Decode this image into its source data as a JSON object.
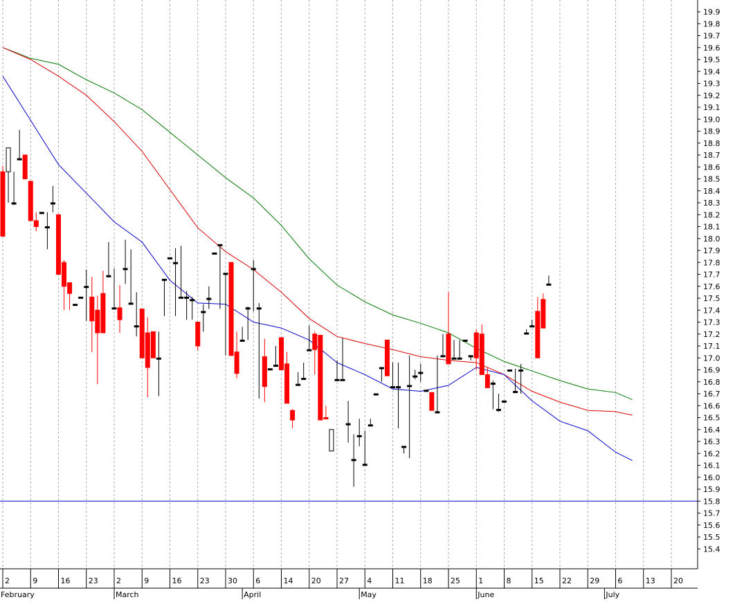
{
  "chart_data": {
    "type": "candlestick",
    "colors": {
      "up": "#ffffff",
      "down": "#ff0000",
      "flat": "#000000",
      "ma_fast": "#0000cc",
      "ma_mid": "#dd0000",
      "ma_slow": "#007700",
      "support": "#0000cc",
      "grid": "#aaaaaa"
    },
    "ylim": [
      15.4,
      20.0
    ],
    "y_ticks": [
      "19.9",
      "19.8",
      "19.7",
      "19.6",
      "19.5",
      "19.4",
      "19.3",
      "19.2",
      "19.1",
      "19.0",
      "18.9",
      "18.8",
      "18.7",
      "18.6",
      "18.5",
      "18.4",
      "18.3",
      "18.2",
      "18.1",
      "18.0",
      "17.9",
      "17.8",
      "17.7",
      "17.6",
      "17.5",
      "17.4",
      "17.3",
      "17.2",
      "17.1",
      "17.0",
      "16.9",
      "16.8",
      "16.7",
      "16.6",
      "16.5",
      "16.4",
      "16.3",
      "16.2",
      "16.1",
      "16.0",
      "15.9",
      "15.8",
      "15.7",
      "15.6",
      "15.5",
      "15.4"
    ],
    "x_week_ticks": [
      {
        "label": "2",
        "day": 0
      },
      {
        "label": "9",
        "day": 5
      },
      {
        "label": "16",
        "day": 10
      },
      {
        "label": "23",
        "day": 15
      },
      {
        "label": "2",
        "day": 20
      },
      {
        "label": "9",
        "day": 25
      },
      {
        "label": "16",
        "day": 30
      },
      {
        "label": "23",
        "day": 35
      },
      {
        "label": "30",
        "day": 40
      },
      {
        "label": "6",
        "day": 45
      },
      {
        "label": "14",
        "day": 50
      },
      {
        "label": "20",
        "day": 55
      },
      {
        "label": "27",
        "day": 60
      },
      {
        "label": "4",
        "day": 65
      },
      {
        "label": "11",
        "day": 70
      },
      {
        "label": "18",
        "day": 75
      },
      {
        "label": "25",
        "day": 80
      },
      {
        "label": "1",
        "day": 85
      },
      {
        "label": "8",
        "day": 90
      },
      {
        "label": "15",
        "day": 95
      },
      {
        "label": "22",
        "day": 100
      },
      {
        "label": "29",
        "day": 105
      },
      {
        "label": "6",
        "day": 110
      },
      {
        "label": "13",
        "day": 115
      },
      {
        "label": "20",
        "day": 120
      }
    ],
    "x_months": [
      {
        "label": "February",
        "day": 0
      },
      {
        "label": "March",
        "day": 20
      },
      {
        "label": "April",
        "day": 43
      },
      {
        "label": "May",
        "day": 64
      },
      {
        "label": "June",
        "day": 85
      },
      {
        "label": "July",
        "day": 108
      }
    ],
    "support_level": 15.8,
    "candles": [
      [
        18.56,
        18.02,
        18.61,
        18.02
      ],
      [
        18.56,
        18.76,
        18.3,
        18.73
      ],
      [
        18.3,
        18.3,
        18.28,
        18.56
      ],
      [
        18.67,
        18.67,
        18.91,
        18.67
      ],
      [
        18.7,
        18.5,
        18.7,
        18.5
      ],
      [
        18.48,
        18.15,
        18.48,
        18.15
      ],
      [
        18.15,
        18.1,
        18.22,
        18.06
      ],
      [
        18.22,
        18.22,
        18.22,
        18.22
      ],
      [
        18.1,
        18.1,
        18.22,
        17.91
      ],
      [
        18.3,
        18.3,
        18.44,
        18.22
      ],
      [
        18.2,
        17.7,
        18.2,
        17.7
      ],
      [
        17.8,
        17.6,
        17.82,
        17.4
      ],
      [
        17.63,
        17.54,
        17.63,
        17.4
      ],
      [
        17.45,
        17.45,
        17.45,
        17.45
      ],
      [
        17.51,
        17.51,
        17.51,
        17.51
      ],
      [
        17.6,
        17.6,
        17.74,
        17.31
      ],
      [
        17.51,
        17.31,
        17.68,
        17.05
      ],
      [
        17.4,
        17.21,
        17.52,
        16.78
      ],
      [
        17.54,
        17.21,
        17.73,
        17.21
      ],
      [
        17.69,
        17.69,
        17.97,
        17.69
      ],
      [
        17.42,
        17.42,
        17.75,
        17.42
      ],
      [
        17.42,
        17.32,
        17.61,
        17.21
      ],
      [
        17.75,
        17.75,
        17.99,
        17.62
      ],
      [
        17.46,
        17.46,
        17.91,
        17.46
      ],
      [
        17.27,
        17.27,
        17.55,
        17.18
      ],
      [
        17.41,
        17.0,
        17.41,
        17.0
      ],
      [
        17.21,
        16.92,
        17.34,
        16.67
      ],
      [
        17.22,
        17.0,
        17.22,
        17.0
      ],
      [
        17.0,
        17.0,
        17.22,
        16.68
      ],
      [
        17.66,
        17.66,
        17.66,
        17.35
      ],
      [
        17.84,
        17.84,
        17.84,
        17.84
      ],
      [
        17.8,
        17.8,
        17.92,
        17.35
      ],
      [
        17.51,
        17.51,
        17.94,
        17.51
      ],
      [
        17.51,
        17.51,
        17.56,
        17.32
      ],
      [
        17.49,
        17.49,
        17.51,
        17.32
      ],
      [
        17.3,
        17.1,
        17.3,
        17.06
      ],
      [
        17.39,
        17.39,
        17.45,
        17.22
      ],
      [
        17.5,
        17.5,
        17.6,
        17.41
      ],
      [
        17.88,
        17.88,
        17.88,
        17.88
      ],
      [
        17.95,
        17.95,
        17.95,
        17.41
      ],
      [
        17.71,
        17.71,
        17.71,
        17.02
      ],
      [
        17.8,
        17.02,
        17.8,
        17.02
      ],
      [
        17.05,
        16.87,
        17.22,
        16.83
      ],
      [
        17.15,
        17.15,
        17.26,
        17.15
      ],
      [
        17.42,
        17.42,
        17.43,
        17.15
      ],
      [
        17.75,
        17.75,
        17.82,
        17.39
      ],
      [
        17.42,
        17.42,
        17.46,
        16.66
      ],
      [
        17.01,
        16.76,
        17.16,
        16.63
      ],
      [
        16.91,
        16.91,
        16.91,
        16.91
      ],
      [
        16.94,
        16.94,
        17.1,
        16.94
      ],
      [
        17.17,
        16.9,
        17.17,
        16.9
      ],
      [
        16.95,
        16.62,
        17.05,
        16.62
      ],
      [
        16.56,
        16.48,
        16.57,
        16.41
      ],
      [
        16.78,
        16.78,
        16.88,
        16.78
      ],
      [
        16.83,
        16.83,
        16.96,
        16.83
      ],
      [
        17.07,
        17.07,
        17.27,
        17.07
      ],
      [
        17.2,
        17.07,
        17.22,
        16.86
      ],
      [
        17.19,
        16.48,
        17.19,
        16.48
      ],
      [
        16.5,
        16.49,
        16.6,
        16.49
      ],
      [
        16.22,
        16.4,
        16.22,
        16.4
      ],
      [
        16.82,
        16.82,
        16.98,
        16.82
      ],
      [
        16.82,
        16.82,
        17.17,
        16.82
      ],
      [
        16.45,
        16.45,
        16.64,
        16.29
      ],
      [
        16.15,
        16.15,
        16.36,
        15.92
      ],
      [
        16.35,
        16.35,
        16.49,
        16.26
      ],
      [
        16.11,
        16.11,
        16.39,
        16.11
      ],
      [
        16.44,
        16.44,
        16.49,
        16.44
      ],
      [
        16.7,
        16.7,
        16.7,
        16.7
      ],
      [
        16.92,
        16.92,
        16.92,
        16.8
      ],
      [
        17.15,
        16.85,
        17.15,
        16.85
      ],
      [
        16.76,
        16.76,
        16.96,
        16.76
      ],
      [
        16.76,
        16.76,
        16.96,
        16.41
      ],
      [
        16.26,
        16.26,
        16.26,
        16.2
      ],
      [
        16.77,
        16.77,
        17.02,
        16.16
      ],
      [
        16.85,
        16.85,
        16.9,
        16.82
      ],
      [
        16.88,
        16.88,
        16.95,
        16.8
      ],
      [
        16.73,
        16.73,
        16.73,
        16.73
      ],
      [
        16.71,
        16.56,
        16.71,
        16.56
      ],
      [
        16.55,
        16.55,
        17.02,
        16.55
      ],
      [
        17.02,
        17.02,
        17.2,
        17.02
      ],
      [
        17.2,
        16.95,
        17.55,
        16.95
      ],
      [
        17.0,
        17.0,
        17.15,
        17.0
      ],
      [
        17.0,
        17.0,
        17.15,
        17.0
      ],
      [
        17.15,
        17.15,
        17.15,
        17.15
      ],
      [
        17.02,
        17.02,
        17.02,
        16.98
      ],
      [
        17.21,
        17.0,
        17.24,
        16.9
      ],
      [
        17.2,
        16.86,
        17.28,
        16.86
      ],
      [
        16.86,
        16.75,
        16.92,
        16.75
      ],
      [
        16.79,
        16.79,
        16.81,
        16.57
      ],
      [
        16.57,
        16.57,
        16.7,
        16.55
      ],
      [
        16.64,
        16.64,
        16.64,
        16.64
      ],
      [
        16.9,
        16.9,
        16.9,
        16.9
      ],
      [
        16.72,
        16.72,
        16.91,
        16.72
      ],
      [
        16.9,
        16.9,
        16.95,
        16.7
      ],
      [
        17.21,
        17.21,
        17.24,
        17.21
      ],
      [
        17.27,
        17.27,
        17.32,
        17.27
      ],
      [
        17.39,
        17.0,
        17.51,
        17.0
      ],
      [
        17.49,
        17.25,
        17.54,
        17.25
      ],
      [
        17.62,
        17.62,
        17.69,
        17.62
      ]
    ],
    "ma_fast": [
      [
        0,
        19.36
      ],
      [
        5,
        18.99
      ],
      [
        10,
        18.62
      ],
      [
        15,
        18.38
      ],
      [
        20,
        18.14
      ],
      [
        25,
        17.97
      ],
      [
        30,
        17.65
      ],
      [
        35,
        17.46
      ],
      [
        40,
        17.45
      ],
      [
        45,
        17.3
      ],
      [
        50,
        17.25
      ],
      [
        55,
        17.15
      ],
      [
        60,
        16.96
      ],
      [
        65,
        16.86
      ],
      [
        70,
        16.74
      ],
      [
        75,
        16.72
      ],
      [
        80,
        16.77
      ],
      [
        85,
        16.92
      ],
      [
        90,
        16.86
      ],
      [
        95,
        16.64
      ],
      [
        100,
        16.47
      ],
      [
        105,
        16.39
      ],
      [
        110,
        16.21
      ],
      [
        113,
        16.14
      ]
    ],
    "ma_mid": [
      [
        0,
        19.6
      ],
      [
        5,
        19.5
      ],
      [
        10,
        19.36
      ],
      [
        15,
        19.2
      ],
      [
        20,
        18.98
      ],
      [
        25,
        18.73
      ],
      [
        30,
        18.41
      ],
      [
        35,
        18.09
      ],
      [
        40,
        17.89
      ],
      [
        45,
        17.74
      ],
      [
        50,
        17.55
      ],
      [
        55,
        17.33
      ],
      [
        60,
        17.18
      ],
      [
        65,
        17.12
      ],
      [
        70,
        17.07
      ],
      [
        75,
        17.01
      ],
      [
        80,
        16.98
      ],
      [
        85,
        16.96
      ],
      [
        90,
        16.86
      ],
      [
        95,
        16.72
      ],
      [
        100,
        16.63
      ],
      [
        105,
        16.56
      ],
      [
        110,
        16.55
      ],
      [
        113,
        16.52
      ]
    ],
    "ma_slow": [
      [
        0,
        19.6
      ],
      [
        5,
        19.51
      ],
      [
        10,
        19.46
      ],
      [
        15,
        19.33
      ],
      [
        20,
        19.22
      ],
      [
        25,
        19.08
      ],
      [
        30,
        18.89
      ],
      [
        35,
        18.7
      ],
      [
        40,
        18.51
      ],
      [
        45,
        18.34
      ],
      [
        50,
        18.11
      ],
      [
        55,
        17.83
      ],
      [
        60,
        17.61
      ],
      [
        65,
        17.47
      ],
      [
        70,
        17.36
      ],
      [
        75,
        17.29
      ],
      [
        80,
        17.21
      ],
      [
        85,
        17.08
      ],
      [
        90,
        16.97
      ],
      [
        95,
        16.89
      ],
      [
        100,
        16.81
      ],
      [
        105,
        16.74
      ],
      [
        110,
        16.71
      ],
      [
        113,
        16.65
      ]
    ]
  }
}
